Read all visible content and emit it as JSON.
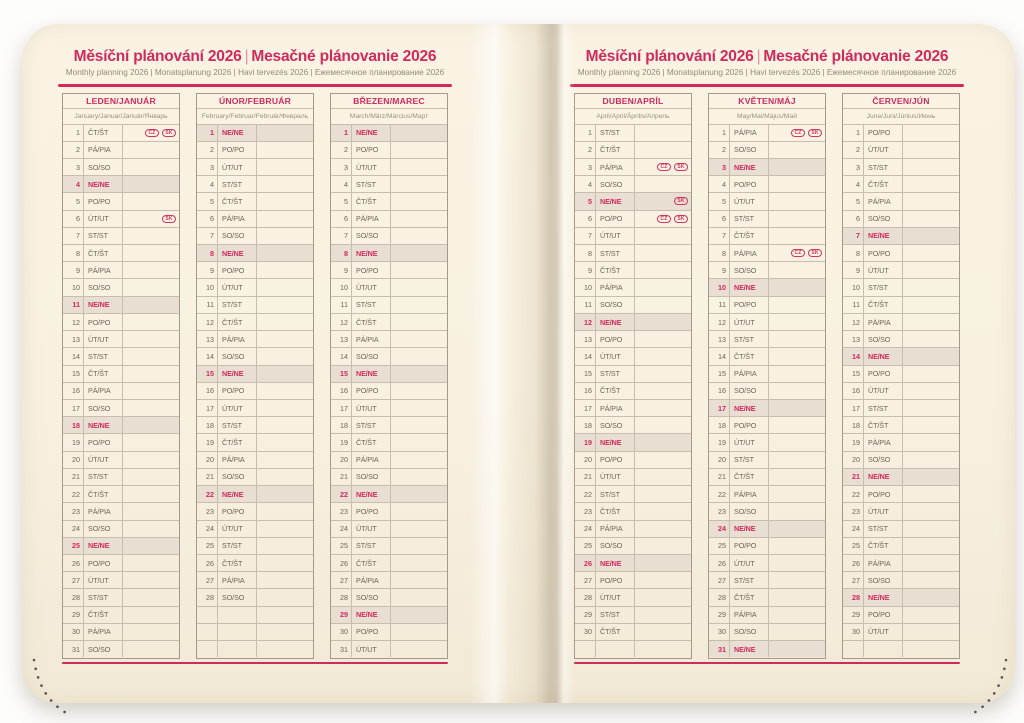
{
  "header": {
    "title_cs": "Měsíční plánování 2026",
    "title_sep": "|",
    "title_sk": "Mesačné plánovanie 2026",
    "subtitle": "Monthly planning 2026 | Monatsplanung 2026 | Havi tervezés 2026 | Ежемесячное планирование 2026"
  },
  "colors": {
    "accent": "#d02a5c",
    "page_cream": "#f8f1e1",
    "sunday_fill": "#e9ded2",
    "day_text": "#6f635a",
    "grid_line": "#c7beaf"
  },
  "months": [
    {
      "name": "LEDEN/JANUÁR",
      "subtitle": "January/Januar/Január/Январь",
      "days": [
        {
          "n": "1",
          "d": "ČT/ŠT",
          "badges": [
            "CZ",
            "SK"
          ]
        },
        {
          "n": "2",
          "d": "PÁ/PIA"
        },
        {
          "n": "3",
          "d": "SO/SO"
        },
        {
          "n": "4",
          "d": "NE/NE",
          "sunday": true
        },
        {
          "n": "5",
          "d": "PO/PO"
        },
        {
          "n": "6",
          "d": "ÚT/UT",
          "badges": [
            "SK"
          ]
        },
        {
          "n": "7",
          "d": "ST/ST"
        },
        {
          "n": "8",
          "d": "ČT/ŠT"
        },
        {
          "n": "9",
          "d": "PÁ/PIA"
        },
        {
          "n": "10",
          "d": "SO/SO"
        },
        {
          "n": "11",
          "d": "NE/NE",
          "sunday": true
        },
        {
          "n": "12",
          "d": "PO/PO"
        },
        {
          "n": "13",
          "d": "ÚT/UT"
        },
        {
          "n": "14",
          "d": "ST/ST"
        },
        {
          "n": "15",
          "d": "ČT/ŠT"
        },
        {
          "n": "16",
          "d": "PÁ/PIA"
        },
        {
          "n": "17",
          "d": "SO/SO"
        },
        {
          "n": "18",
          "d": "NE/NE",
          "sunday": true
        },
        {
          "n": "19",
          "d": "PO/PO"
        },
        {
          "n": "20",
          "d": "ÚT/UT"
        },
        {
          "n": "21",
          "d": "ST/ST"
        },
        {
          "n": "22",
          "d": "ČT/ŠT"
        },
        {
          "n": "23",
          "d": "PÁ/PIA"
        },
        {
          "n": "24",
          "d": "SO/SO"
        },
        {
          "n": "25",
          "d": "NE/NE",
          "sunday": true
        },
        {
          "n": "26",
          "d": "PO/PO"
        },
        {
          "n": "27",
          "d": "ÚT/UT"
        },
        {
          "n": "28",
          "d": "ST/ST"
        },
        {
          "n": "29",
          "d": "ČT/ŠT"
        },
        {
          "n": "30",
          "d": "PÁ/PIA"
        },
        {
          "n": "31",
          "d": "SO/SO"
        }
      ]
    },
    {
      "name": "ÚNOR/FEBRUÁR",
      "subtitle": "February/Februar/Február/Февраль",
      "days": [
        {
          "n": "1",
          "d": "NE/NE",
          "sunday": true
        },
        {
          "n": "2",
          "d": "PO/PO"
        },
        {
          "n": "3",
          "d": "ÚT/UT"
        },
        {
          "n": "4",
          "d": "ST/ST"
        },
        {
          "n": "5",
          "d": "ČT/ŠT"
        },
        {
          "n": "6",
          "d": "PÁ/PIA"
        },
        {
          "n": "7",
          "d": "SO/SO"
        },
        {
          "n": "8",
          "d": "NE/NE",
          "sunday": true
        },
        {
          "n": "9",
          "d": "PO/PO"
        },
        {
          "n": "10",
          "d": "ÚT/UT"
        },
        {
          "n": "11",
          "d": "ST/ST"
        },
        {
          "n": "12",
          "d": "ČT/ŠT"
        },
        {
          "n": "13",
          "d": "PÁ/PIA"
        },
        {
          "n": "14",
          "d": "SO/SO"
        },
        {
          "n": "15",
          "d": "NE/NE",
          "sunday": true
        },
        {
          "n": "16",
          "d": "PO/PO"
        },
        {
          "n": "17",
          "d": "ÚT/UT"
        },
        {
          "n": "18",
          "d": "ST/ST"
        },
        {
          "n": "19",
          "d": "ČT/ŠT"
        },
        {
          "n": "20",
          "d": "PÁ/PIA"
        },
        {
          "n": "21",
          "d": "SO/SO"
        },
        {
          "n": "22",
          "d": "NE/NE",
          "sunday": true
        },
        {
          "n": "23",
          "d": "PO/PO"
        },
        {
          "n": "24",
          "d": "ÚT/UT"
        },
        {
          "n": "25",
          "d": "ST/ST"
        },
        {
          "n": "26",
          "d": "ČT/ŠT"
        },
        {
          "n": "27",
          "d": "PÁ/PIA"
        },
        {
          "n": "28",
          "d": "SO/SO"
        }
      ]
    },
    {
      "name": "BŘEZEN/MAREC",
      "subtitle": "March/März/Március/Март",
      "days": [
        {
          "n": "1",
          "d": "NE/NE",
          "sunday": true
        },
        {
          "n": "2",
          "d": "PO/PO"
        },
        {
          "n": "3",
          "d": "ÚT/UT"
        },
        {
          "n": "4",
          "d": "ST/ST"
        },
        {
          "n": "5",
          "d": "ČT/ŠT"
        },
        {
          "n": "6",
          "d": "PÁ/PIA"
        },
        {
          "n": "7",
          "d": "SO/SO"
        },
        {
          "n": "8",
          "d": "NE/NE",
          "sunday": true
        },
        {
          "n": "9",
          "d": "PO/PO"
        },
        {
          "n": "10",
          "d": "ÚT/UT"
        },
        {
          "n": "11",
          "d": "ST/ST"
        },
        {
          "n": "12",
          "d": "ČT/ŠT"
        },
        {
          "n": "13",
          "d": "PÁ/PIA"
        },
        {
          "n": "14",
          "d": "SO/SO"
        },
        {
          "n": "15",
          "d": "NE/NE",
          "sunday": true
        },
        {
          "n": "16",
          "d": "PO/PO"
        },
        {
          "n": "17",
          "d": "ÚT/UT"
        },
        {
          "n": "18",
          "d": "ST/ST"
        },
        {
          "n": "19",
          "d": "ČT/ŠT"
        },
        {
          "n": "20",
          "d": "PÁ/PIA"
        },
        {
          "n": "21",
          "d": "SO/SO"
        },
        {
          "n": "22",
          "d": "NE/NE",
          "sunday": true
        },
        {
          "n": "23",
          "d": "PO/PO"
        },
        {
          "n": "24",
          "d": "ÚT/UT"
        },
        {
          "n": "25",
          "d": "ST/ST"
        },
        {
          "n": "26",
          "d": "ČT/ŠT"
        },
        {
          "n": "27",
          "d": "PÁ/PIA"
        },
        {
          "n": "28",
          "d": "SO/SO"
        },
        {
          "n": "29",
          "d": "NE/NE",
          "sunday": true
        },
        {
          "n": "30",
          "d": "PO/PO"
        },
        {
          "n": "31",
          "d": "ÚT/UT"
        }
      ]
    },
    {
      "name": "DUBEN/APRÍL",
      "subtitle": "April/April/Április/Апрель",
      "days": [
        {
          "n": "1",
          "d": "ST/ST"
        },
        {
          "n": "2",
          "d": "ČT/ŠT"
        },
        {
          "n": "3",
          "d": "PÁ/PIA",
          "badges": [
            "CZ",
            "SK"
          ]
        },
        {
          "n": "4",
          "d": "SO/SO"
        },
        {
          "n": "5",
          "d": "NE/NE",
          "sunday": true,
          "badges": [
            "SK"
          ]
        },
        {
          "n": "6",
          "d": "PO/PO",
          "badges": [
            "CZ",
            "SK"
          ]
        },
        {
          "n": "7",
          "d": "ÚT/UT"
        },
        {
          "n": "8",
          "d": "ST/ST"
        },
        {
          "n": "9",
          "d": "ČT/ŠT"
        },
        {
          "n": "10",
          "d": "PÁ/PIA"
        },
        {
          "n": "11",
          "d": "SO/SO"
        },
        {
          "n": "12",
          "d": "NE/NE",
          "sunday": true
        },
        {
          "n": "13",
          "d": "PO/PO"
        },
        {
          "n": "14",
          "d": "ÚT/UT"
        },
        {
          "n": "15",
          "d": "ST/ST"
        },
        {
          "n": "16",
          "d": "ČT/ŠT"
        },
        {
          "n": "17",
          "d": "PÁ/PIA"
        },
        {
          "n": "18",
          "d": "SO/SO"
        },
        {
          "n": "19",
          "d": "NE/NE",
          "sunday": true
        },
        {
          "n": "20",
          "d": "PO/PO"
        },
        {
          "n": "21",
          "d": "ÚT/UT"
        },
        {
          "n": "22",
          "d": "ST/ST"
        },
        {
          "n": "23",
          "d": "ČT/ŠT"
        },
        {
          "n": "24",
          "d": "PÁ/PIA"
        },
        {
          "n": "25",
          "d": "SO/SO"
        },
        {
          "n": "26",
          "d": "NE/NE",
          "sunday": true
        },
        {
          "n": "27",
          "d": "PO/PO"
        },
        {
          "n": "28",
          "d": "ÚT/UT"
        },
        {
          "n": "29",
          "d": "ST/ST"
        },
        {
          "n": "30",
          "d": "ČT/ŠT"
        }
      ]
    },
    {
      "name": "KVĚTEN/MÁJ",
      "subtitle": "May/Mai/Május/Май",
      "days": [
        {
          "n": "1",
          "d": "PÁ/PIA",
          "badges": [
            "CZ",
            "SK"
          ]
        },
        {
          "n": "2",
          "d": "SO/SO"
        },
        {
          "n": "3",
          "d": "NE/NE",
          "sunday": true
        },
        {
          "n": "4",
          "d": "PO/PO"
        },
        {
          "n": "5",
          "d": "ÚT/UT"
        },
        {
          "n": "6",
          "d": "ST/ST"
        },
        {
          "n": "7",
          "d": "ČT/ŠT"
        },
        {
          "n": "8",
          "d": "PÁ/PIA",
          "badges": [
            "CZ",
            "SK"
          ]
        },
        {
          "n": "9",
          "d": "SO/SO"
        },
        {
          "n": "10",
          "d": "NE/NE",
          "sunday": true
        },
        {
          "n": "11",
          "d": "PO/PO"
        },
        {
          "n": "12",
          "d": "ÚT/UT"
        },
        {
          "n": "13",
          "d": "ST/ST"
        },
        {
          "n": "14",
          "d": "ČT/ŠT"
        },
        {
          "n": "15",
          "d": "PÁ/PIA"
        },
        {
          "n": "16",
          "d": "SO/SO"
        },
        {
          "n": "17",
          "d": "NE/NE",
          "sunday": true
        },
        {
          "n": "18",
          "d": "PO/PO"
        },
        {
          "n": "19",
          "d": "ÚT/UT"
        },
        {
          "n": "20",
          "d": "ST/ST"
        },
        {
          "n": "21",
          "d": "ČT/ŠT"
        },
        {
          "n": "22",
          "d": "PÁ/PIA"
        },
        {
          "n": "23",
          "d": "SO/SO"
        },
        {
          "n": "24",
          "d": "NE/NE",
          "sunday": true
        },
        {
          "n": "25",
          "d": "PO/PO"
        },
        {
          "n": "26",
          "d": "ÚT/UT"
        },
        {
          "n": "27",
          "d": "ST/ST"
        },
        {
          "n": "28",
          "d": "ČT/ŠT"
        },
        {
          "n": "29",
          "d": "PÁ/PIA"
        },
        {
          "n": "30",
          "d": "SO/SO"
        },
        {
          "n": "31",
          "d": "NE/NE",
          "sunday": true
        }
      ]
    },
    {
      "name": "ČERVEN/JÚN",
      "subtitle": "June/Juni/Június/Июнь",
      "days": [
        {
          "n": "1",
          "d": "PO/PO"
        },
        {
          "n": "2",
          "d": "ÚT/UT"
        },
        {
          "n": "3",
          "d": "ST/ST"
        },
        {
          "n": "4",
          "d": "ČT/ŠT"
        },
        {
          "n": "5",
          "d": "PÁ/PIA"
        },
        {
          "n": "6",
          "d": "SO/SO"
        },
        {
          "n": "7",
          "d": "NE/NE",
          "sunday": true
        },
        {
          "n": "8",
          "d": "PO/PO"
        },
        {
          "n": "9",
          "d": "ÚT/UT"
        },
        {
          "n": "10",
          "d": "ST/ST"
        },
        {
          "n": "11",
          "d": "ČT/ŠT"
        },
        {
          "n": "12",
          "d": "PÁ/PIA"
        },
        {
          "n": "13",
          "d": "SO/SO"
        },
        {
          "n": "14",
          "d": "NE/NE",
          "sunday": true
        },
        {
          "n": "15",
          "d": "PO/PO"
        },
        {
          "n": "16",
          "d": "ÚT/UT"
        },
        {
          "n": "17",
          "d": "ST/ST"
        },
        {
          "n": "18",
          "d": "ČT/ŠT"
        },
        {
          "n": "19",
          "d": "PÁ/PIA"
        },
        {
          "n": "20",
          "d": "SO/SO"
        },
        {
          "n": "21",
          "d": "NE/NE",
          "sunday": true
        },
        {
          "n": "22",
          "d": "PO/PO"
        },
        {
          "n": "23",
          "d": "ÚT/UT"
        },
        {
          "n": "24",
          "d": "ST/ST"
        },
        {
          "n": "25",
          "d": "ČT/ŠT"
        },
        {
          "n": "26",
          "d": "PÁ/PIA"
        },
        {
          "n": "27",
          "d": "SO/SO"
        },
        {
          "n": "28",
          "d": "NE/NE",
          "sunday": true
        },
        {
          "n": "29",
          "d": "PO/PO"
        },
        {
          "n": "30",
          "d": "ÚT/UT"
        }
      ]
    }
  ]
}
